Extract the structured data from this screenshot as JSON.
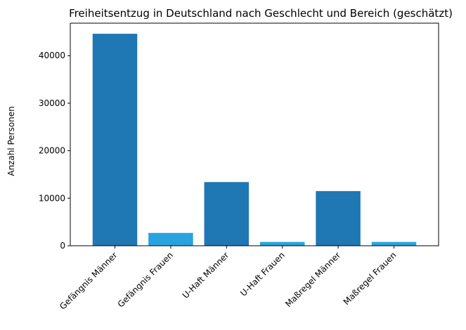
{
  "chart_data": {
    "type": "bar",
    "title": "Freiheitsentzug in Deutschland nach Geschlecht und Bereich (geschätzt)",
    "xlabel": "",
    "ylabel": "Anzahl Personen",
    "categories": [
      "Gefängnis Männer",
      "Gefängnis Frauen",
      "U-Haft Männer",
      "U-Haft Frauen",
      "Maßregel Männer",
      "Maßregel Frauen"
    ],
    "values": [
      44600,
      2700,
      13400,
      800,
      11500,
      800
    ],
    "bar_colors": [
      "#1f77b4",
      "#29a3de",
      "#1f77b4",
      "#29a3de",
      "#1f77b4",
      "#29a3de"
    ],
    "yticks": [
      0,
      10000,
      20000,
      30000,
      40000
    ],
    "ylim": [
      0,
      46830
    ],
    "grid": false,
    "legend": "none"
  }
}
